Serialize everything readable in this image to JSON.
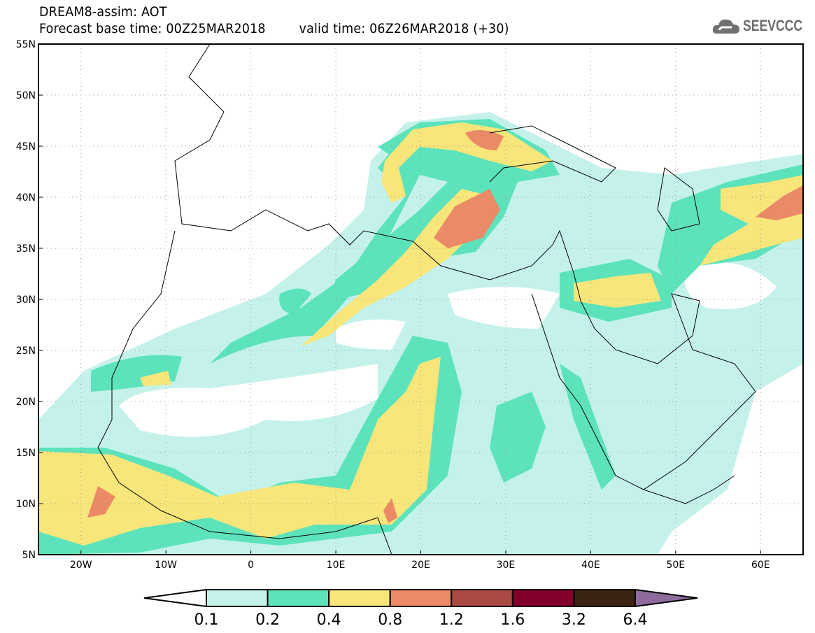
{
  "header": {
    "title": "DREAM8-assim: AOT",
    "base_time": "Forecast base time: 00Z25MAR2018",
    "valid_time": "valid time: 06Z26MAR2018 (+30)"
  },
  "logo": {
    "text": "SEEVCCC",
    "icon": "cloud-icon"
  },
  "map": {
    "lon_range": [
      -25,
      65
    ],
    "lat_range": [
      5,
      55
    ],
    "lon_ticks": [
      {
        "v": -20,
        "label": "20W"
      },
      {
        "v": -10,
        "label": "10W"
      },
      {
        "v": 0,
        "label": "0"
      },
      {
        "v": 10,
        "label": "10E"
      },
      {
        "v": 20,
        "label": "20E"
      },
      {
        "v": 30,
        "label": "30E"
      },
      {
        "v": 40,
        "label": "40E"
      },
      {
        "v": 50,
        "label": "50E"
      },
      {
        "v": 60,
        "label": "60E"
      }
    ],
    "lat_ticks": [
      {
        "v": 5,
        "label": "5N"
      },
      {
        "v": 10,
        "label": "10N"
      },
      {
        "v": 15,
        "label": "15N"
      },
      {
        "v": 20,
        "label": "20N"
      },
      {
        "v": 25,
        "label": "25N"
      },
      {
        "v": 30,
        "label": "30N"
      },
      {
        "v": 35,
        "label": "35N"
      },
      {
        "v": 40,
        "label": "40N"
      },
      {
        "v": 45,
        "label": "45N"
      },
      {
        "v": 50,
        "label": "50N"
      },
      {
        "v": 55,
        "label": "55N"
      }
    ]
  },
  "colorbar": {
    "levels": [
      "0.1",
      "0.2",
      "0.4",
      "0.8",
      "1.2",
      "1.6",
      "3.2",
      "6.4"
    ],
    "colors": [
      "#c4f2ea",
      "#5ce3bc",
      "#f8e67a",
      "#ea8a66",
      "#aa4a42",
      "#82002a",
      "#3c2412"
    ],
    "over_color": "#8e6a9e",
    "under_color": "#ffffff"
  }
}
